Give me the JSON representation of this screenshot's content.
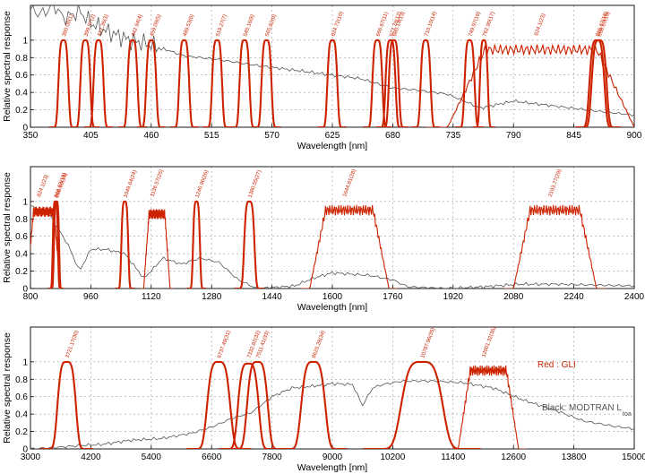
{
  "colors": {
    "srf": "#cc2200",
    "atmosphere": "#555555",
    "grid": "#9a9a9a"
  },
  "legend": {
    "red": "Red : GLI",
    "black": "Black: MODTRAN L",
    "black_sub": "toa"
  },
  "chart_data": [
    {
      "type": "line",
      "xlabel": "Wavelength [nm]",
      "ylabel": "Relative spectral response",
      "xlim": [
        350,
        900
      ],
      "ylim": [
        0,
        1.4
      ],
      "xticks": [
        350,
        405,
        460,
        515,
        570,
        625,
        680,
        735,
        790,
        845,
        900
      ],
      "yticks": [
        0,
        0.2,
        0.4,
        0.6,
        0.8,
        1
      ],
      "grid": true,
      "bands": [
        {
          "label": "380.00(1)",
          "center": 380,
          "width": 10
        },
        {
          "label": "399.57(2)",
          "center": 400,
          "width": 10
        },
        {
          "label": "412.36(3)",
          "center": 412,
          "width": 10
        },
        {
          "label": "442.94(4)",
          "center": 443,
          "width": 10
        },
        {
          "label": "459.09(5)",
          "center": 460,
          "width": 10
        },
        {
          "label": "489.53(6)",
          "center": 490,
          "width": 10
        },
        {
          "label": "519.27(7)",
          "center": 520,
          "width": 10
        },
        {
          "label": "545.16(8)",
          "center": 545,
          "width": 10
        },
        {
          "label": "565.82(9)",
          "center": 565,
          "width": 10
        },
        {
          "label": "624.72(10)",
          "center": 625,
          "width": 10
        },
        {
          "label": "666.67(11)",
          "center": 666,
          "width": 10
        },
        {
          "label": "677.78(12)",
          "center": 678,
          "width": 10
        },
        {
          "label": "680.14(13)",
          "center": 681,
          "width": 10
        },
        {
          "label": "710.10(14)",
          "center": 710,
          "width": 10
        },
        {
          "label": "749.97(16)",
          "center": 750,
          "width": 10
        },
        {
          "label": "762.90(17)",
          "center": 763,
          "width": 8
        },
        {
          "label": "866.67(18)",
          "center": 866,
          "width": 15
        },
        {
          "label": "868.69(19)",
          "center": 868,
          "width": 15
        }
      ],
      "wide_bands": [
        {
          "label": "824.1(23)",
          "start": 730,
          "end": 900,
          "peak": 0.99
        }
      ],
      "atmosphere": {
        "x": [
          350,
          360,
          372,
          380,
          395,
          405,
          420,
          440,
          460,
          490,
          520,
          550,
          600,
          650,
          680,
          700,
          730,
          760,
          790,
          830,
          870,
          900
        ],
        "y": [
          1.35,
          1.3,
          1.4,
          1.25,
          1.33,
          1.2,
          1.1,
          1.0,
          0.95,
          0.82,
          0.78,
          0.72,
          0.64,
          0.56,
          0.45,
          0.43,
          0.38,
          0.22,
          0.3,
          0.24,
          0.18,
          0.14
        ]
      }
    },
    {
      "type": "line",
      "xlabel": "Wavelength [nm]",
      "ylabel": "Relative spectral response",
      "xlim": [
        800,
        2400
      ],
      "ylim": [
        0,
        1.4
      ],
      "xticks": [
        800,
        960,
        1120,
        1280,
        1440,
        1600,
        1760,
        1920,
        2080,
        2240,
        2400
      ],
      "yticks": [
        0,
        0.2,
        0.4,
        0.6,
        0.8,
        1
      ],
      "grid": true,
      "bands": [
        {
          "label": "866.67(18)",
          "center": 866,
          "width": 15
        },
        {
          "label": "868.69(19)",
          "center": 869,
          "width": 15
        },
        {
          "label": "1049.64(24)",
          "center": 1050,
          "width": 20
        },
        {
          "label": "1240.96(26)",
          "center": 1240,
          "width": 20
        },
        {
          "label": "1380.55(27)",
          "center": 1380,
          "width": 30
        }
      ],
      "wide_bands": [
        {
          "label": "824.1(23)",
          "start": 790,
          "end": 880,
          "peak": 0.98
        },
        {
          "label": "1136.57(25)",
          "start": 1100,
          "end": 1170,
          "peak": 0.95
        },
        {
          "label": "1644.81(28)",
          "start": 1540,
          "end": 1750,
          "peak": 1.0
        },
        {
          "label": "2193.77(29)",
          "start": 2080,
          "end": 2300,
          "peak": 1.0
        }
      ],
      "atmosphere": {
        "x": [
          800,
          850,
          900,
          930,
          960,
          1000,
          1050,
          1100,
          1120,
          1150,
          1200,
          1250,
          1300,
          1350,
          1400,
          1500,
          1550,
          1600,
          1700,
          1760,
          1800,
          1900,
          2000,
          2100,
          2200,
          2300,
          2400
        ],
        "y": [
          0.95,
          0.85,
          0.5,
          0.2,
          0.45,
          0.45,
          0.4,
          0.12,
          0.2,
          0.35,
          0.28,
          0.35,
          0.3,
          0.1,
          0.0,
          0.03,
          0.12,
          0.18,
          0.15,
          0.1,
          0.02,
          0.0,
          0.02,
          0.05,
          0.05,
          0.04,
          0.03
        ]
      }
    },
    {
      "type": "line",
      "xlabel": "Wavelength [nm]",
      "ylabel": "Relative spectral response",
      "xlim": [
        3000,
        15000
      ],
      "ylim": [
        0,
        1.4
      ],
      "xticks": [
        3000,
        4200,
        5400,
        6600,
        7800,
        9000,
        10200,
        11400,
        12600,
        13800,
        15000
      ],
      "yticks": [
        0,
        0.2,
        0.4,
        0.6,
        0.8,
        1
      ],
      "grid": true,
      "bands": [
        {
          "label": "3721.17(30)",
          "center": 3720,
          "width": 400,
          "peak": 1.0
        },
        {
          "label": "6737.49(31)",
          "center": 6740,
          "width": 500,
          "peak": 1.0
        },
        {
          "label": "7332.82(32)",
          "center": 7330,
          "width": 450,
          "peak": 0.98
        },
        {
          "label": "7511.41(33)",
          "center": 7510,
          "width": 450,
          "peak": 1.0
        },
        {
          "label": "8625.28(34)",
          "center": 8620,
          "width": 520,
          "peak": 1.0
        },
        {
          "label": "10787.96(35)",
          "center": 10780,
          "width": 900,
          "peak": 1.0
        }
      ],
      "wide_bands": [
        {
          "label": "12001.32(36)",
          "start": 11500,
          "end": 12700,
          "peak": 1.0
        }
      ],
      "atmosphere": {
        "x": [
          3000,
          3600,
          4000,
          4400,
          5000,
          5600,
          6200,
          6600,
          7000,
          7400,
          7800,
          8200,
          8600,
          9000,
          9400,
          9600,
          9800,
          10000,
          10400,
          11000,
          11600,
          12200,
          12800,
          13400,
          14000,
          14600,
          15000
        ],
        "y": [
          0.0,
          0.02,
          0.04,
          0.05,
          0.1,
          0.12,
          0.18,
          0.25,
          0.35,
          0.42,
          0.6,
          0.7,
          0.72,
          0.75,
          0.74,
          0.5,
          0.7,
          0.74,
          0.78,
          0.78,
          0.76,
          0.7,
          0.56,
          0.45,
          0.32,
          0.26,
          0.23
        ]
      }
    }
  ]
}
